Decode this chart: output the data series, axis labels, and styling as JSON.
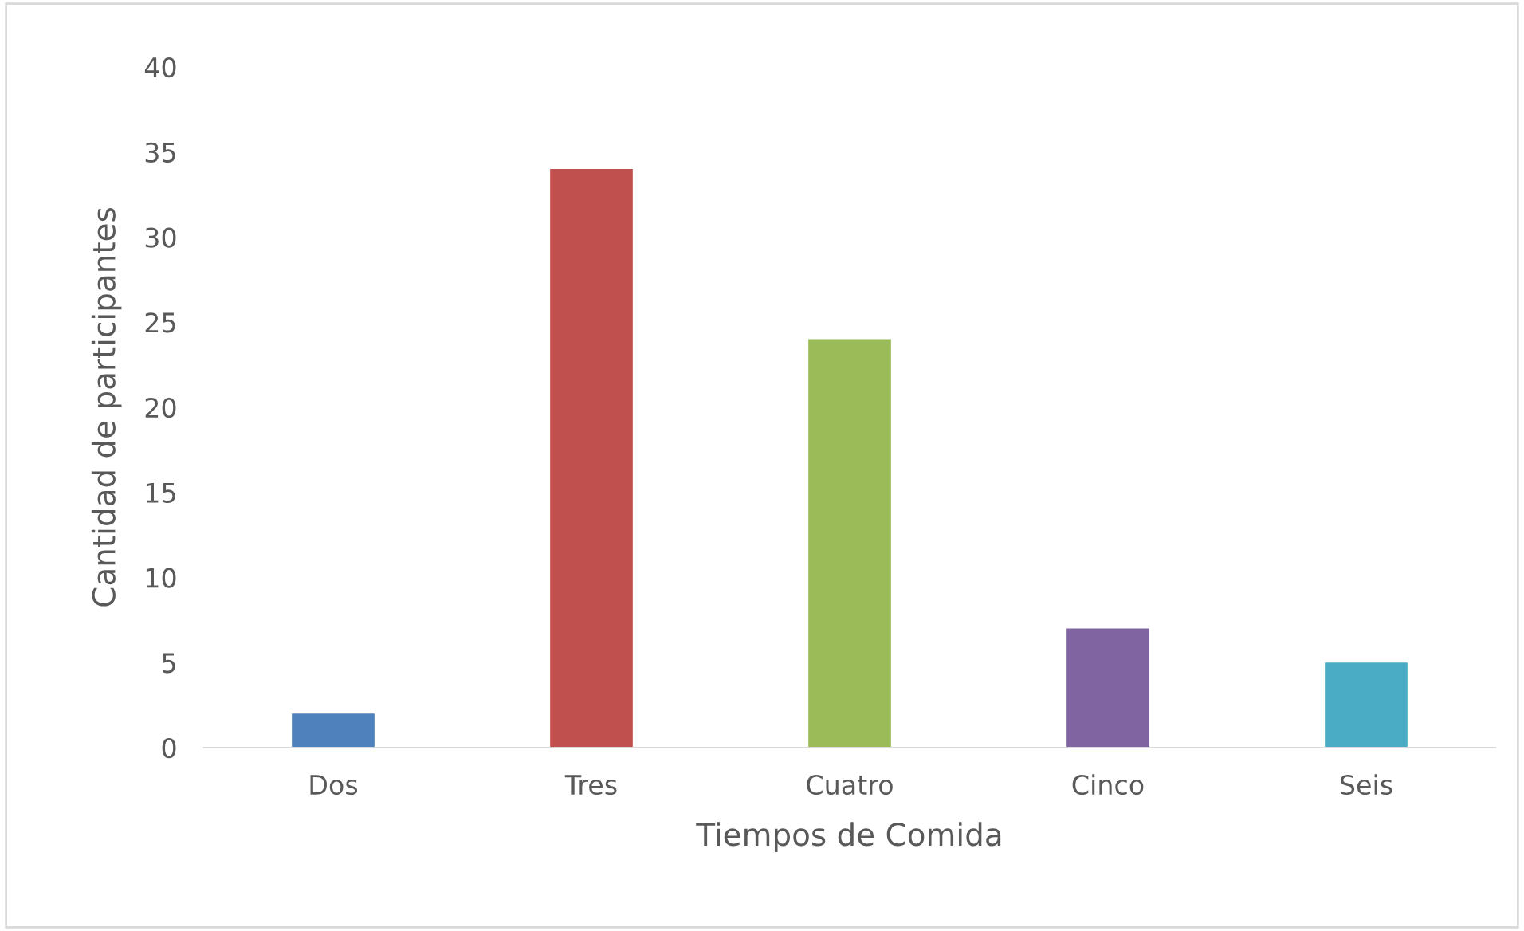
{
  "chart_data": {
    "type": "bar",
    "xlabel": "Tiempos de Comida",
    "ylabel": "Cantidad de participantes",
    "categories": [
      "Dos",
      "Tres",
      "Cuatro",
      "Cinco",
      "Seis"
    ],
    "values": [
      2,
      34,
      24,
      7,
      5
    ],
    "colors": [
      "#4f81bd",
      "#c0504d",
      "#9bbb59",
      "#8064a2",
      "#4bacc6"
    ],
    "ylim": [
      0,
      40
    ],
    "yticks": [
      0,
      5,
      10,
      15,
      20,
      25,
      30,
      35,
      40
    ],
    "grid": false
  }
}
